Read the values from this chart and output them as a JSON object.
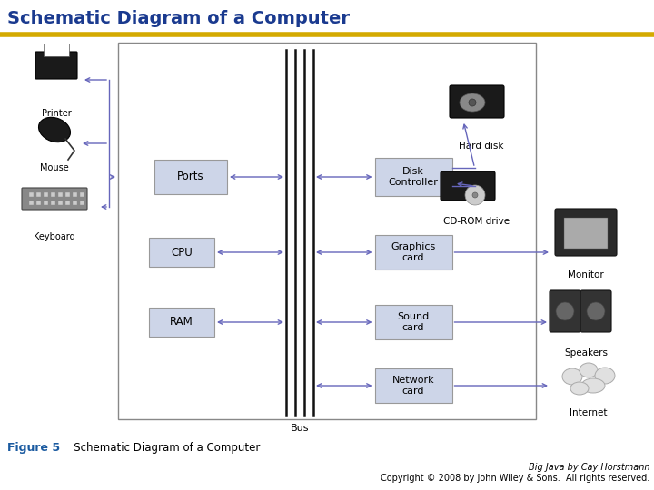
{
  "title": "Schematic Diagram of a Computer",
  "title_color": "#1a3a8f",
  "title_fontsize": 14,
  "bg_color": "#ffffff",
  "box_fill": "#cdd5e8",
  "box_edge": "#999999",
  "arrow_color": "#6666bb",
  "bus_color": "#111111",
  "border_color": "#888888",
  "figure_caption_bold": "Figure 5",
  "figure_caption_normal": "   Schematic Diagram of a Computer",
  "caption_color": "#1a5aa0",
  "copyright_line1": "Big Java by Cay Horstmann",
  "copyright_line2": "Copyright © 2008 by John Wiley & Sons.  All rights reserved.",
  "header_line_color": "#d4aa00",
  "bg_color2": "#f8f8f8"
}
